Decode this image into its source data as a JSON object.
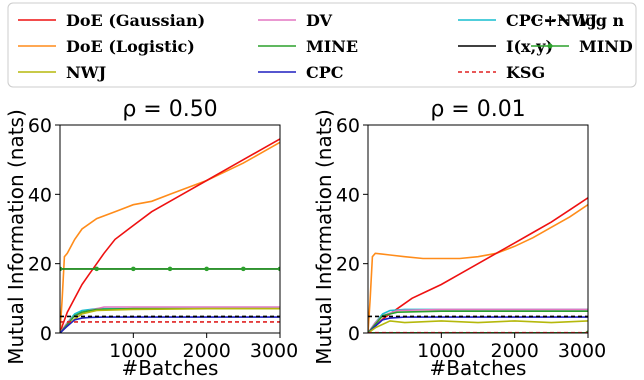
{
  "legend": [
    {
      "label": "DoE (Gaussian)",
      "color": "#ee1111",
      "style": "solid"
    },
    {
      "label": "DoE (Logistic)",
      "color": "#ff8c1a",
      "style": "solid"
    },
    {
      "label": "NWJ",
      "color": "#b5b80c",
      "style": "solid"
    },
    {
      "label": "DV",
      "color": "#e377c2",
      "style": "solid"
    },
    {
      "label": "MINE",
      "color": "#2ca02c",
      "style": "solid"
    },
    {
      "label": "CPC",
      "color": "#1f1fbf",
      "style": "solid"
    },
    {
      "label": "CPC+NWJ",
      "color": "#17becf",
      "style": "solid"
    },
    {
      "label": "I(x,y)",
      "color": "#000000",
      "style": "solid"
    },
    {
      "label": "KSG",
      "color": "#e02020",
      "style": "dashed"
    },
    {
      "label": "log n",
      "color": "#000000",
      "style": "dashed"
    },
    {
      "label": "MIND",
      "color": "#2ca02c",
      "style": "marker"
    }
  ],
  "chart_data": [
    {
      "type": "line",
      "title": "ρ = 0.50",
      "xlabel": "#Batches",
      "ylabel": "Mutual Information (nats)",
      "xlim": [
        0,
        3000
      ],
      "ylim": [
        0,
        60
      ],
      "xticks": [
        "1000",
        "2000",
        "3000"
      ],
      "yticks": [
        "0",
        "20",
        "40",
        "60"
      ],
      "series": [
        {
          "name": "DoE (Logistic)",
          "color": "#ff8c1a",
          "x": [
            0,
            30,
            60,
            100,
            200,
            300,
            500,
            750,
            1000,
            1250,
            1500,
            1750,
            2000,
            2250,
            2500,
            2750,
            3000
          ],
          "y": [
            0,
            10,
            22,
            23,
            27,
            30,
            33,
            35,
            37,
            38,
            40,
            42,
            44,
            46.5,
            49,
            52,
            55
          ]
        },
        {
          "name": "DoE (Gaussian)",
          "color": "#ee1111",
          "x": [
            0,
            30,
            100,
            200,
            300,
            400,
            500,
            600,
            750,
            1000,
            1250,
            1500,
            1750,
            2000,
            2250,
            2500,
            2750,
            3000
          ],
          "y": [
            0,
            2,
            6,
            10,
            14,
            17,
            20,
            23,
            27,
            31,
            35,
            38,
            41,
            44,
            47,
            50,
            53,
            56
          ]
        },
        {
          "name": "I(x,y)",
          "color": "#000000",
          "x": [
            0,
            3000
          ],
          "y": [
            18.5,
            18.5
          ]
        },
        {
          "name": "MIND",
          "color": "#2ca02c",
          "x": [
            0,
            500,
            1000,
            1500,
            2000,
            2500,
            3000
          ],
          "y": [
            18.5,
            18.5,
            18.5,
            18.5,
            18.5,
            18.5,
            18.5
          ]
        },
        {
          "name": "CPC+NWJ",
          "color": "#17becf",
          "x": [
            0,
            100,
            200,
            300,
            500,
            1000,
            1500,
            2000,
            2500,
            3000
          ],
          "y": [
            0,
            3,
            5.5,
            6.5,
            7,
            7,
            7,
            7,
            7,
            7
          ]
        },
        {
          "name": "DV",
          "color": "#e377c2",
          "x": [
            0,
            100,
            200,
            400,
            600,
            1000,
            2000,
            3000
          ],
          "y": [
            0,
            3,
            5,
            6.5,
            7.5,
            7.5,
            7.5,
            7.5
          ]
        },
        {
          "name": "MINE",
          "color": "#2ca02c",
          "x": [
            0,
            100,
            200,
            300,
            500,
            1000,
            2000,
            3000
          ],
          "y": [
            0,
            2.5,
            5,
            6,
            6.8,
            7,
            7,
            7
          ]
        },
        {
          "name": "NWJ",
          "color": "#b5b80c",
          "x": [
            0,
            100,
            200,
            300,
            500,
            1000,
            2000,
            3000
          ],
          "y": [
            0,
            2,
            4,
            5.5,
            6.5,
            6.8,
            7,
            7
          ]
        },
        {
          "name": "CPC",
          "color": "#1f1fbf",
          "x": [
            0,
            100,
            200,
            300,
            400,
            600,
            1000,
            2000,
            3000
          ],
          "y": [
            0,
            2,
            3.8,
            4.3,
            4.5,
            4.6,
            4.6,
            4.6,
            4.6
          ]
        },
        {
          "name": "log n",
          "color": "#000000",
          "x": [
            0,
            3000
          ],
          "y": [
            4.8,
            4.8
          ]
        },
        {
          "name": "KSG",
          "color": "#e02020",
          "x": [
            0,
            3000
          ],
          "y": [
            3.2,
            3.2
          ]
        }
      ]
    },
    {
      "type": "line",
      "title": "ρ = 0.01",
      "xlabel": "#Batches",
      "ylabel": "Mutual Information (nats)",
      "xlim": [
        0,
        3000
      ],
      "ylim": [
        0,
        60
      ],
      "xticks": [
        "1000",
        "2000",
        "3000"
      ],
      "yticks": [
        "0",
        "20",
        "40",
        "60"
      ],
      "series": [
        {
          "name": "DoE (Logistic)",
          "color": "#ff8c1a",
          "x": [
            0,
            30,
            60,
            100,
            300,
            500,
            750,
            1000,
            1250,
            1500,
            1750,
            2000,
            2250,
            2500,
            2750,
            3000
          ],
          "y": [
            0,
            10,
            22,
            23,
            22.5,
            22,
            21.5,
            21.5,
            21.5,
            22,
            23,
            25,
            27.5,
            30.5,
            33.5,
            37
          ]
        },
        {
          "name": "DoE (Gaussian)",
          "color": "#ee1111",
          "x": [
            0,
            100,
            200,
            400,
            600,
            800,
            1000,
            1250,
            1500,
            1750,
            2000,
            2250,
            2500,
            2750,
            3000
          ],
          "y": [
            0,
            2,
            4,
            7,
            10,
            12,
            14,
            17,
            20,
            23,
            26,
            29,
            32,
            35.5,
            39
          ]
        },
        {
          "name": "CPC+NWJ",
          "color": "#17becf",
          "x": [
            0,
            100,
            200,
            300,
            500,
            1000,
            2000,
            3000
          ],
          "y": [
            0,
            3,
            5.5,
            6.5,
            6.8,
            6.8,
            6.8,
            6.8
          ]
        },
        {
          "name": "DV",
          "color": "#e377c2",
          "x": [
            0,
            100,
            200,
            400,
            1000,
            2000,
            3000
          ],
          "y": [
            0,
            3,
            5,
            6.5,
            6.8,
            6.8,
            6.8
          ]
        },
        {
          "name": "MINE",
          "color": "#2ca02c",
          "x": [
            0,
            100,
            200,
            400,
            1000,
            3000
          ],
          "y": [
            0,
            2.5,
            5,
            6,
            6.3,
            6.3
          ]
        },
        {
          "name": "CPC",
          "color": "#1f1fbf",
          "x": [
            0,
            100,
            200,
            300,
            500,
            1000,
            3000
          ],
          "y": [
            0,
            2,
            3.8,
            4.3,
            4.6,
            4.6,
            4.6
          ]
        },
        {
          "name": "log n",
          "color": "#000000",
          "x": [
            0,
            3000
          ],
          "y": [
            4.8,
            4.8
          ]
        },
        {
          "name": "NWJ",
          "color": "#b5b80c",
          "x": [
            0,
            100,
            300,
            500,
            1000,
            1500,
            2000,
            2500,
            3000
          ],
          "y": [
            0,
            1.5,
            3.5,
            3,
            3.5,
            3,
            3.5,
            3,
            3.5
          ]
        },
        {
          "name": "I(x,y)",
          "color": "#000000",
          "x": [
            0,
            3000
          ],
          "y": [
            0.05,
            0.05
          ]
        },
        {
          "name": "MIND",
          "color": "#2ca02c",
          "x": [
            0,
            3000
          ],
          "y": [
            0.05,
            0.05
          ]
        },
        {
          "name": "KSG",
          "color": "#e02020",
          "x": [
            0,
            3000
          ],
          "y": [
            0.1,
            0.1
          ]
        }
      ]
    }
  ]
}
